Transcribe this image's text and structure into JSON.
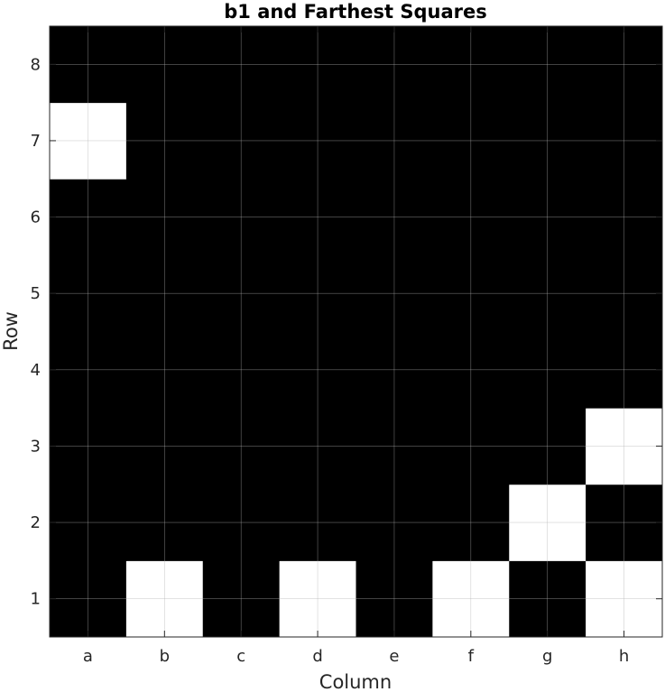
{
  "chart_data": {
    "type": "heatmap",
    "title": "b1 and Farthest Squares",
    "xlabel": "Column",
    "ylabel": "Row",
    "columns": [
      "a",
      "b",
      "c",
      "d",
      "e",
      "f",
      "g",
      "h"
    ],
    "rows": [
      "1",
      "2",
      "3",
      "4",
      "5",
      "6",
      "7",
      "8"
    ],
    "colormap": {
      "0": "#000000",
      "1": "#ffffff"
    },
    "grid": true,
    "values": [
      [
        0,
        1,
        0,
        1,
        0,
        1,
        0,
        1
      ],
      [
        0,
        0,
        0,
        0,
        0,
        0,
        1,
        0
      ],
      [
        0,
        0,
        0,
        0,
        0,
        0,
        0,
        1
      ],
      [
        0,
        0,
        0,
        0,
        0,
        0,
        0,
        0
      ],
      [
        0,
        0,
        0,
        0,
        0,
        0,
        0,
        0
      ],
      [
        0,
        0,
        0,
        0,
        0,
        0,
        0,
        0
      ],
      [
        1,
        0,
        0,
        0,
        0,
        0,
        0,
        0
      ],
      [
        0,
        0,
        0,
        0,
        0,
        0,
        0,
        0
      ]
    ]
  }
}
